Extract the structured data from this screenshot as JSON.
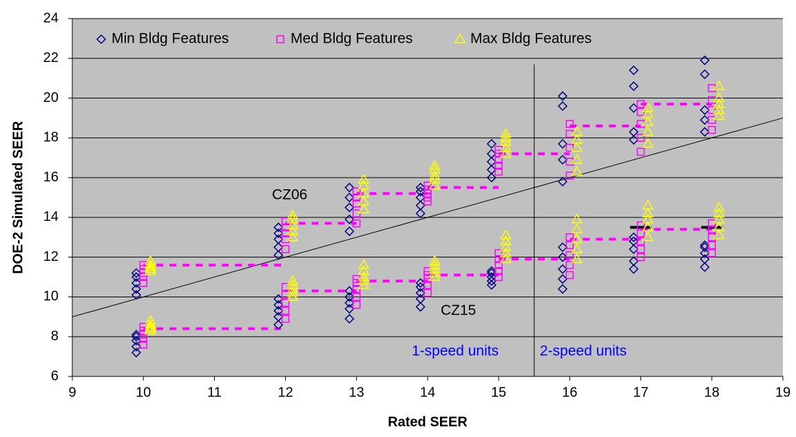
{
  "chart_data": {
    "type": "scatter",
    "xlabel": "Rated SEER",
    "ylabel": "DOE-2 Simulated SEER",
    "xlim": [
      9,
      19
    ],
    "ylim": [
      6,
      24
    ],
    "xticks": [
      9,
      10,
      11,
      12,
      13,
      14,
      15,
      16,
      17,
      18,
      19
    ],
    "yticks": [
      6,
      8,
      10,
      12,
      14,
      16,
      18,
      20,
      22,
      24
    ],
    "grid": true,
    "legend": "top",
    "series": [
      {
        "name": "Min Bldg Features",
        "color": "#000080",
        "marker": "diamond",
        "x": [
          9.9,
          9.9,
          9.9,
          9.9,
          9.9,
          9.9,
          9.9,
          9.9,
          9.9,
          9.9,
          11.9,
          11.9,
          11.9,
          11.9,
          11.9,
          11.9,
          11.9,
          11.9,
          11.9,
          11.9,
          12.9,
          12.9,
          12.9,
          12.9,
          12.9,
          12.9,
          12.9,
          12.9,
          12.9,
          12.9,
          13.9,
          13.9,
          13.9,
          13.9,
          13.9,
          13.9,
          13.9,
          13.9,
          13.9,
          13.9,
          14.9,
          14.9,
          14.9,
          14.9,
          14.9,
          14.9,
          14.9,
          14.9,
          14.9,
          14.9,
          15.9,
          15.9,
          15.9,
          15.9,
          15.9,
          15.9,
          15.9,
          15.9,
          15.9,
          15.9,
          16.9,
          16.9,
          16.9,
          16.9,
          16.9,
          16.9,
          16.9,
          16.9,
          16.9,
          16.9,
          17.9,
          17.9,
          17.9,
          17.9,
          17.9,
          17.9,
          17.9,
          17.9,
          17.9,
          17.9
        ],
        "values": [
          10.1,
          10.4,
          10.7,
          11.0,
          11.2,
          7.2,
          7.5,
          7.8,
          8.0,
          8.1,
          12.1,
          12.5,
          12.9,
          13.2,
          13.5,
          8.6,
          9.0,
          9.3,
          9.6,
          9.9,
          13.3,
          13.9,
          14.5,
          15.0,
          15.5,
          8.9,
          9.4,
          9.7,
          10.0,
          10.3,
          14.2,
          14.6,
          15.0,
          15.3,
          15.5,
          9.5,
          9.9,
          10.2,
          10.5,
          10.7,
          16.0,
          16.4,
          16.8,
          17.2,
          17.7,
          10.6,
          10.8,
          11.0,
          11.2,
          11.3,
          15.8,
          16.9,
          17.7,
          19.6,
          20.1,
          10.4,
          10.9,
          11.4,
          12.0,
          12.5,
          17.9,
          18.3,
          19.5,
          20.6,
          21.4,
          11.4,
          11.8,
          12.4,
          12.8,
          13.0,
          18.3,
          18.9,
          19.4,
          21.2,
          21.9,
          11.5,
          11.9,
          12.2,
          12.5,
          12.6
        ]
      },
      {
        "name": "Med Bldg Features",
        "color": "#ff00ff",
        "marker": "square",
        "x": [
          10,
          10,
          10,
          10,
          10,
          10,
          10,
          10,
          10,
          10,
          12,
          12,
          12,
          12,
          12,
          12,
          12,
          12,
          12,
          12,
          13,
          13,
          13,
          13,
          13,
          13,
          13,
          13,
          13,
          13,
          14,
          14,
          14,
          14,
          14,
          14,
          14,
          14,
          14,
          14,
          15,
          15,
          15,
          15,
          15,
          15,
          15,
          15,
          15,
          15,
          16,
          16,
          16,
          16,
          16,
          16,
          16,
          16,
          16,
          16,
          17,
          17,
          17,
          17,
          17,
          17,
          17,
          17,
          17,
          17,
          18,
          18,
          18,
          18,
          18,
          18,
          18,
          18,
          18,
          18
        ],
        "values": [
          10.7,
          11.0,
          11.2,
          11.4,
          11.6,
          7.6,
          7.9,
          8.1,
          8.3,
          8.5,
          12.4,
          12.9,
          13.2,
          13.5,
          13.8,
          8.9,
          9.3,
          9.7,
          10.1,
          10.5,
          13.7,
          14.2,
          14.7,
          15.0,
          15.3,
          9.6,
          10.0,
          10.4,
          10.7,
          10.9,
          14.8,
          15.0,
          15.2,
          15.4,
          15.6,
          10.2,
          10.6,
          10.9,
          11.1,
          11.3,
          16.3,
          16.6,
          16.9,
          17.2,
          17.4,
          11.0,
          11.3,
          11.6,
          11.9,
          12.2,
          16.1,
          16.8,
          17.5,
          18.2,
          18.7,
          11.1,
          11.6,
          12.1,
          12.6,
          13.0,
          17.3,
          18.0,
          18.7,
          19.3,
          19.7,
          12.0,
          12.4,
          12.8,
          13.2,
          13.6,
          18.4,
          18.9,
          19.4,
          19.9,
          20.5,
          12.2,
          12.6,
          13.0,
          13.4,
          13.7
        ]
      },
      {
        "name": "Max Bldg Features",
        "color": "#ffff00",
        "marker": "triangle",
        "x": [
          10.1,
          10.1,
          10.1,
          10.1,
          10.1,
          10.1,
          10.1,
          10.1,
          10.1,
          10.1,
          12.1,
          12.1,
          12.1,
          12.1,
          12.1,
          12.1,
          12.1,
          12.1,
          12.1,
          12.1,
          13.1,
          13.1,
          13.1,
          13.1,
          13.1,
          13.1,
          13.1,
          13.1,
          13.1,
          13.1,
          14.1,
          14.1,
          14.1,
          14.1,
          14.1,
          14.1,
          14.1,
          14.1,
          14.1,
          14.1,
          15.1,
          15.1,
          15.1,
          15.1,
          15.1,
          15.1,
          15.1,
          15.1,
          15.1,
          15.1,
          16.1,
          16.1,
          16.1,
          16.1,
          16.1,
          16.1,
          16.1,
          16.1,
          16.1,
          16.1,
          17.1,
          17.1,
          17.1,
          17.1,
          17.1,
          17.1,
          17.1,
          17.1,
          17.1,
          17.1,
          18.1,
          18.1,
          18.1,
          18.1,
          18.1,
          18.1,
          18.1,
          18.1,
          18.1,
          18.1
        ],
        "values": [
          11.3,
          11.4,
          11.5,
          11.6,
          11.8,
          8.3,
          8.4,
          8.5,
          8.6,
          8.8,
          13.0,
          13.3,
          13.6,
          13.9,
          14.1,
          10.0,
          10.2,
          10.4,
          10.6,
          10.8,
          14.4,
          14.8,
          15.2,
          15.6,
          15.9,
          10.6,
          10.8,
          11.0,
          11.3,
          11.6,
          15.6,
          15.9,
          16.1,
          16.4,
          16.6,
          11.0,
          11.2,
          11.4,
          11.6,
          11.8,
          17.2,
          17.5,
          17.8,
          18.0,
          18.2,
          11.9,
          12.2,
          12.5,
          12.8,
          13.1,
          16.3,
          16.9,
          17.5,
          17.9,
          18.3,
          11.9,
          12.4,
          12.9,
          13.4,
          13.9,
          17.7,
          18.3,
          18.8,
          19.2,
          19.5,
          13.0,
          13.5,
          13.9,
          14.2,
          14.6,
          19.1,
          19.4,
          19.7,
          20.0,
          20.6,
          13.1,
          13.5,
          13.9,
          14.2,
          14.5
        ]
      }
    ],
    "lines": [
      {
        "color": "#000000",
        "style": "solid",
        "x": [
          9,
          19
        ],
        "y": [
          9,
          19
        ]
      },
      {
        "color": "#000000",
        "style": "solid",
        "x": [
          15.5,
          15.5
        ],
        "y": [
          6,
          21.7
        ]
      },
      {
        "color": "#ff00ff",
        "style": "dashed",
        "x": [
          10,
          12
        ],
        "y": [
          11.6,
          11.6
        ]
      },
      {
        "color": "#ff00ff",
        "style": "dashed",
        "x": [
          12,
          13
        ],
        "y": [
          13.7,
          13.7
        ]
      },
      {
        "color": "#ff00ff",
        "style": "dashed",
        "x": [
          13,
          14
        ],
        "y": [
          15.2,
          15.2
        ]
      },
      {
        "color": "#ff00ff",
        "style": "dashed",
        "x": [
          14,
          15
        ],
        "y": [
          15.5,
          15.5
        ]
      },
      {
        "color": "#ff00ff",
        "style": "dashed",
        "x": [
          15,
          16
        ],
        "y": [
          17.2,
          17.2
        ]
      },
      {
        "color": "#ff00ff",
        "style": "dashed",
        "x": [
          16,
          17
        ],
        "y": [
          18.6,
          18.6
        ]
      },
      {
        "color": "#ff00ff",
        "style": "dashed",
        "x": [
          17,
          18
        ],
        "y": [
          19.7,
          19.7
        ]
      },
      {
        "color": "#ff00ff",
        "style": "dashed",
        "x": [
          10,
          12
        ],
        "y": [
          8.4,
          8.4
        ]
      },
      {
        "color": "#ff00ff",
        "style": "dashed",
        "x": [
          12,
          13
        ],
        "y": [
          10.3,
          10.3
        ]
      },
      {
        "color": "#ff00ff",
        "style": "dashed",
        "x": [
          13,
          14
        ],
        "y": [
          10.8,
          10.8
        ]
      },
      {
        "color": "#ff00ff",
        "style": "dashed",
        "x": [
          14,
          15
        ],
        "y": [
          11.1,
          11.1
        ]
      },
      {
        "color": "#ff00ff",
        "style": "dashed",
        "x": [
          15,
          16
        ],
        "y": [
          11.9,
          11.9
        ]
      },
      {
        "color": "#ff00ff",
        "style": "dashed",
        "x": [
          16,
          17
        ],
        "y": [
          12.9,
          12.9
        ]
      },
      {
        "color": "#ff00ff",
        "style": "dashed",
        "x": [
          17,
          18
        ],
        "y": [
          13.4,
          13.4
        ]
      },
      {
        "color": "#000000",
        "style": "thick",
        "x": [
          16.85,
          17.15
        ],
        "y": [
          13.5,
          13.5
        ]
      },
      {
        "color": "#000000",
        "style": "thick",
        "x": [
          17.85,
          18.15
        ],
        "y": [
          13.5,
          13.5
        ]
      }
    ],
    "annotations": [
      "CZ06",
      "CZ15",
      "1-speed units",
      "2-speed units"
    ]
  }
}
